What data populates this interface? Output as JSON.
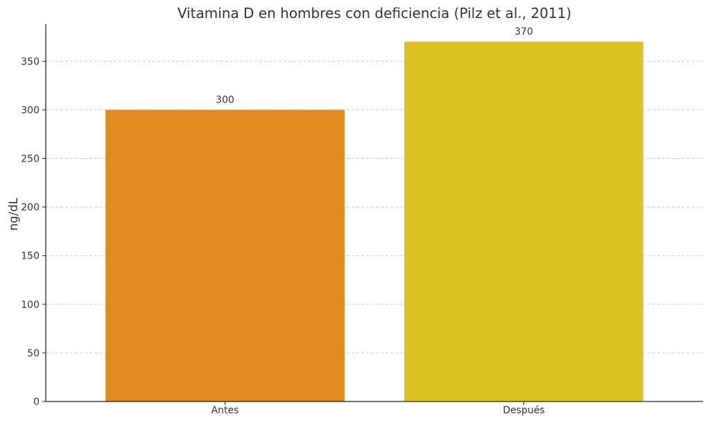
{
  "chart_data": {
    "type": "bar",
    "title": "Vitamina D en hombres con deficiencia (Pilz et al., 2011)",
    "xlabel": "",
    "ylabel": "ng/dL",
    "categories": [
      "Antes",
      "Después"
    ],
    "values": [
      300,
      370
    ],
    "value_labels": [
      "300",
      "370"
    ],
    "colors": [
      "#e08a20",
      "#ddc224"
    ],
    "ylim": [
      0,
      388
    ],
    "yticks": [
      0,
      50,
      100,
      150,
      200,
      250,
      300,
      350
    ],
    "grid": true,
    "legend": "none"
  }
}
